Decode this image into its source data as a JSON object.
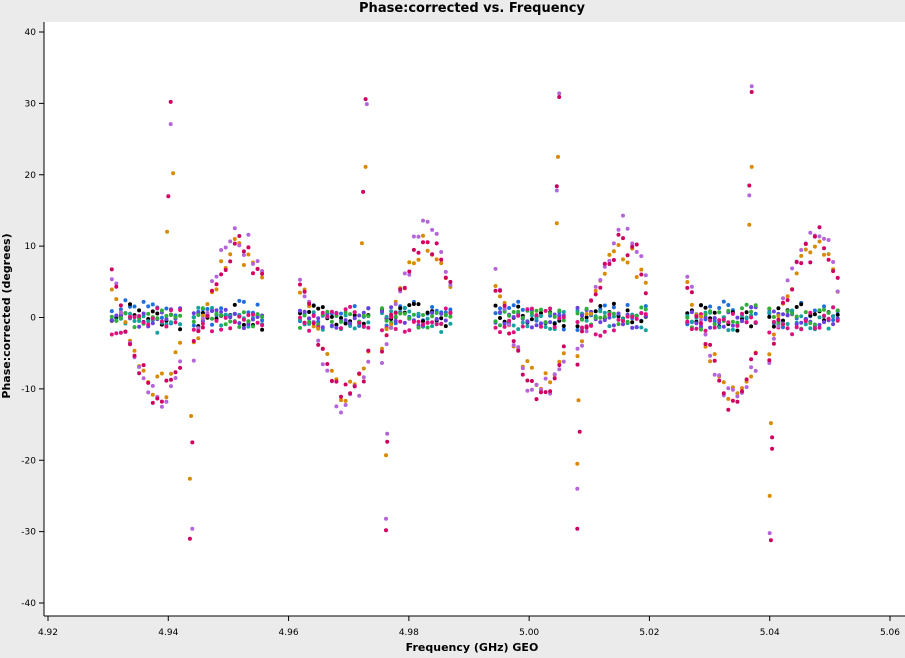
{
  "chart_data": {
    "type": "scatter",
    "title": "Phase:corrected vs. Frequency",
    "xlabel": "Frequency (GHz) GEO",
    "ylabel": "Phase:corrected (degrees)",
    "xlim": [
      4.92,
      5.06
    ],
    "ylim": [
      -40,
      40
    ],
    "x_ticks": [
      "4.92",
      "4.94",
      "4.96",
      "4.98",
      "5.00",
      "5.02",
      "5.04",
      "5.06"
    ],
    "y_ticks": [
      "40",
      "30",
      "20",
      "10",
      "0",
      "-10",
      "-20",
      "-30",
      "-40"
    ],
    "grid": false,
    "legend": "none",
    "spw_ranges": [
      [
        4.9306,
        4.9556
      ],
      [
        4.9619,
        4.9869
      ],
      [
        4.9944,
        5.0194
      ],
      [
        5.0263,
        5.0513
      ]
    ],
    "series": [
      {
        "color": "#1f6fe0",
        "amplitude": 1.6,
        "offset": 0.4
      },
      {
        "color": "#000000",
        "amplitude": 1.4,
        "offset": 0.0
      },
      {
        "color": "#16a3a0",
        "amplitude": 1.3,
        "offset": -0.3
      },
      {
        "color": "#6a3fe0",
        "amplitude": 1.1,
        "offset": 0.2
      },
      {
        "color": "#2fae3a",
        "amplitude": 1.3,
        "offset": 0.1
      },
      {
        "color": "#e0117f",
        "amplitude": 1.5,
        "offset": -0.6
      },
      {
        "color": "#d98a00",
        "amplitude": 9.0,
        "offset": 0.0
      },
      {
        "color": "#b465d9",
        "amplitude": 11.0,
        "offset": 0.0
      },
      {
        "color": "#d00060",
        "amplitude": 10.0,
        "offset": 0.0
      }
    ],
    "outliers": [
      {
        "x": 4.9404,
        "y": 30.2,
        "color": "#d00060"
      },
      {
        "x": 4.9404,
        "y": 27.1,
        "color": "#b465d9"
      },
      {
        "x": 4.9408,
        "y": 20.2,
        "color": "#d98a00"
      },
      {
        "x": 4.94,
        "y": 17.0,
        "color": "#d00060"
      },
      {
        "x": 4.9398,
        "y": 12.0,
        "color": "#d98a00"
      },
      {
        "x": 4.9438,
        "y": -13.8,
        "color": "#d98a00"
      },
      {
        "x": 4.944,
        "y": -17.5,
        "color": "#d00060"
      },
      {
        "x": 4.9436,
        "y": -22.6,
        "color": "#d98a00"
      },
      {
        "x": 4.944,
        "y": -29.6,
        "color": "#b465d9"
      },
      {
        "x": 4.9436,
        "y": -31.0,
        "color": "#d00060"
      },
      {
        "x": 4.9728,
        "y": 30.6,
        "color": "#d00060"
      },
      {
        "x": 4.973,
        "y": 29.9,
        "color": "#b465d9"
      },
      {
        "x": 4.9728,
        "y": 21.1,
        "color": "#d98a00"
      },
      {
        "x": 4.9724,
        "y": 17.6,
        "color": "#d00060"
      },
      {
        "x": 4.9722,
        "y": 10.4,
        "color": "#d98a00"
      },
      {
        "x": 4.9764,
        "y": -16.3,
        "color": "#b465d9"
      },
      {
        "x": 4.9764,
        "y": -17.4,
        "color": "#d00060"
      },
      {
        "x": 4.9762,
        "y": -19.3,
        "color": "#d98a00"
      },
      {
        "x": 4.9762,
        "y": -28.2,
        "color": "#b465d9"
      },
      {
        "x": 4.9762,
        "y": -29.8,
        "color": "#d00060"
      },
      {
        "x": 5.005,
        "y": 31.4,
        "color": "#b465d9"
      },
      {
        "x": 5.005,
        "y": 30.9,
        "color": "#d00060"
      },
      {
        "x": 5.0048,
        "y": 22.5,
        "color": "#d98a00"
      },
      {
        "x": 5.0046,
        "y": 18.4,
        "color": "#d00060"
      },
      {
        "x": 5.0046,
        "y": 17.8,
        "color": "#b465d9"
      },
      {
        "x": 5.0046,
        "y": 13.2,
        "color": "#d98a00"
      },
      {
        "x": 5.0082,
        "y": -11.6,
        "color": "#d98a00"
      },
      {
        "x": 5.0084,
        "y": -16.0,
        "color": "#d00060"
      },
      {
        "x": 5.008,
        "y": -20.5,
        "color": "#d98a00"
      },
      {
        "x": 5.008,
        "y": -24.0,
        "color": "#b465d9"
      },
      {
        "x": 5.008,
        "y": -29.6,
        "color": "#d00060"
      },
      {
        "x": 5.037,
        "y": 32.4,
        "color": "#b465d9"
      },
      {
        "x": 5.037,
        "y": 31.6,
        "color": "#d00060"
      },
      {
        "x": 5.037,
        "y": 21.1,
        "color": "#d98a00"
      },
      {
        "x": 5.0366,
        "y": 18.5,
        "color": "#d00060"
      },
      {
        "x": 5.0366,
        "y": 17.1,
        "color": "#b465d9"
      },
      {
        "x": 5.0366,
        "y": 13.0,
        "color": "#d98a00"
      },
      {
        "x": 5.0402,
        "y": -14.8,
        "color": "#d98a00"
      },
      {
        "x": 5.0404,
        "y": -16.8,
        "color": "#d00060"
      },
      {
        "x": 5.0404,
        "y": -18.4,
        "color": "#d00060"
      },
      {
        "x": 5.04,
        "y": -25.0,
        "color": "#d98a00"
      },
      {
        "x": 5.04,
        "y": -30.2,
        "color": "#b465d9"
      },
      {
        "x": 5.0402,
        "y": -31.2,
        "color": "#d00060"
      }
    ]
  }
}
